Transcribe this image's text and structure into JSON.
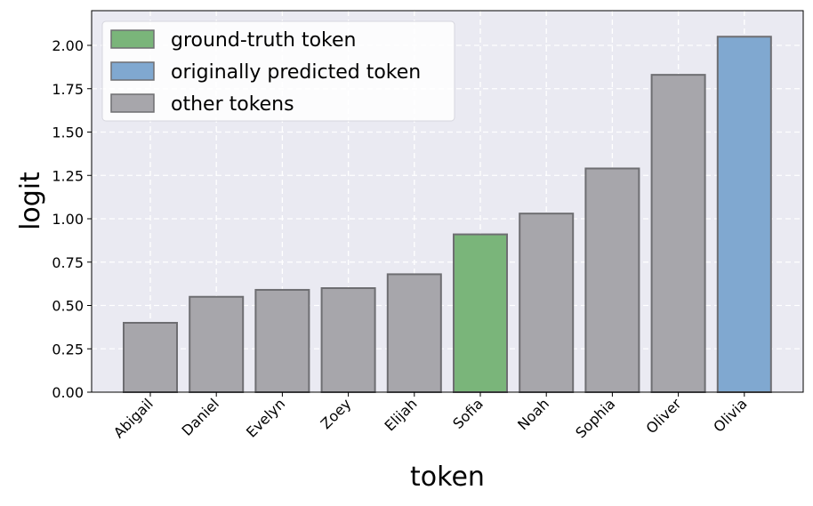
{
  "chart_data": {
    "type": "bar",
    "title": "",
    "xlabel": "token",
    "ylabel": "logit",
    "categories": [
      "Abigail",
      "Daniel",
      "Evelyn",
      "Zoey",
      "Elijah",
      "Sofia",
      "Noah",
      "Sophia",
      "Oliver",
      "Olivia"
    ],
    "values": [
      0.4,
      0.55,
      0.59,
      0.6,
      0.68,
      0.91,
      1.03,
      1.29,
      1.83,
      2.05
    ],
    "bar_roles": [
      "other",
      "other",
      "other",
      "other",
      "other",
      "ground_truth",
      "other",
      "other",
      "other",
      "predicted"
    ],
    "ylim": [
      0,
      2.2
    ],
    "yticks": [
      "0.00",
      "0.25",
      "0.50",
      "0.75",
      "1.00",
      "1.25",
      "1.50",
      "1.75",
      "2.00"
    ],
    "ytick_values": [
      0,
      0.25,
      0.5,
      0.75,
      1.0,
      1.25,
      1.5,
      1.75,
      2.0
    ],
    "grid": true,
    "legend_position": "top-left",
    "legend": [
      {
        "role": "ground_truth",
        "label": "ground-truth token"
      },
      {
        "role": "predicted",
        "label": "originally predicted token"
      },
      {
        "role": "other",
        "label": "other tokens"
      }
    ],
    "colors": {
      "ground_truth": "#7ab57a",
      "predicted": "#80a8d0",
      "other": "#a7a6ab",
      "bar_edge": "#6e6e72",
      "plot_background": "#eaeaf2",
      "grid": "#ffffff"
    }
  }
}
